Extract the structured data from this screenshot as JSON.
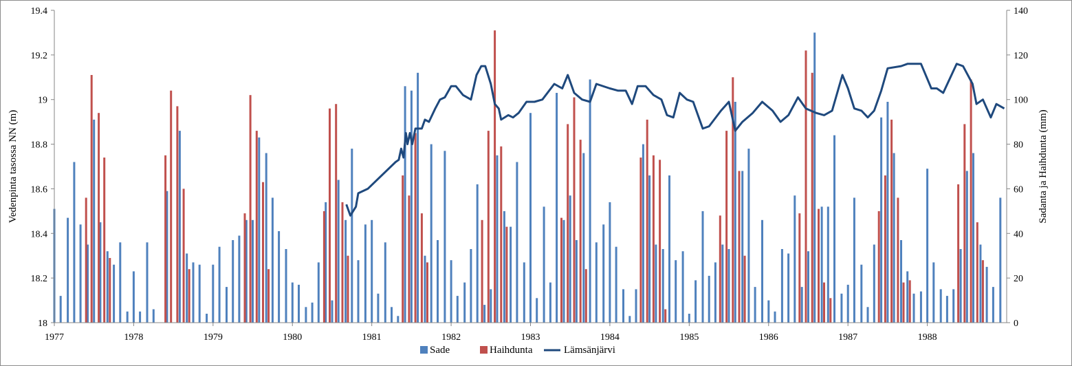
{
  "chart_data": {
    "type": "bar+line",
    "xlabel": "",
    "ylabel_left": "Vedenpinta tasossa NN (m)",
    "ylabel_right": "Sadanta ja Haihdunta (mm)",
    "xlim": [
      1977,
      1989
    ],
    "ylim_left": [
      18,
      19.4
    ],
    "ylim_right": [
      0,
      140
    ],
    "x_ticks": [
      "1977",
      "1978",
      "1979",
      "1980",
      "1981",
      "1982",
      "1983",
      "1984",
      "1985",
      "1986",
      "1987",
      "1988"
    ],
    "y_left_ticks": [
      "18",
      "18.2",
      "18.4",
      "18.6",
      "18.8",
      "19",
      "19.2",
      "19.4"
    ],
    "y_right_ticks": [
      "0",
      "20",
      "40",
      "60",
      "80",
      "100",
      "120",
      "140"
    ],
    "grid": false,
    "legend_position": "bottom",
    "colors": {
      "sade": "#4f81bd",
      "haihdunta": "#c0504d",
      "lamsanjarvi": "#1f497d"
    },
    "series": [
      {
        "name": "Sade",
        "type": "bar",
        "axis": "right",
        "values": [
          [
            1977.0,
            51
          ],
          [
            1977.08,
            12
          ],
          [
            1977.17,
            47
          ],
          [
            1977.25,
            72
          ],
          [
            1977.33,
            44
          ],
          [
            1977.42,
            35
          ],
          [
            1977.5,
            91
          ],
          [
            1977.58,
            45
          ],
          [
            1977.67,
            32
          ],
          [
            1977.75,
            26
          ],
          [
            1977.83,
            36
          ],
          [
            1977.92,
            5
          ],
          [
            1978.0,
            23
          ],
          [
            1978.08,
            5
          ],
          [
            1978.17,
            36
          ],
          [
            1978.25,
            6
          ],
          [
            1978.33,
            0
          ],
          [
            1978.42,
            59
          ],
          [
            1978.5,
            0
          ],
          [
            1978.58,
            86
          ],
          [
            1978.67,
            31
          ],
          [
            1978.75,
            27
          ],
          [
            1978.83,
            26
          ],
          [
            1978.92,
            4
          ],
          [
            1979.0,
            26
          ],
          [
            1979.08,
            34
          ],
          [
            1979.17,
            16
          ],
          [
            1979.25,
            37
          ],
          [
            1979.33,
            39
          ],
          [
            1979.42,
            46
          ],
          [
            1979.5,
            46
          ],
          [
            1979.58,
            83
          ],
          [
            1979.67,
            76
          ],
          [
            1979.75,
            56
          ],
          [
            1979.83,
            41
          ],
          [
            1979.92,
            33
          ],
          [
            1980.0,
            18
          ],
          [
            1980.08,
            17
          ],
          [
            1980.17,
            7
          ],
          [
            1980.25,
            9
          ],
          [
            1980.33,
            27
          ],
          [
            1980.42,
            54
          ],
          [
            1980.5,
            10
          ],
          [
            1980.58,
            64
          ],
          [
            1980.67,
            46
          ],
          [
            1980.75,
            78
          ],
          [
            1980.83,
            28
          ],
          [
            1980.92,
            44
          ],
          [
            1981.0,
            46
          ],
          [
            1981.08,
            13
          ],
          [
            1981.17,
            36
          ],
          [
            1981.25,
            7
          ],
          [
            1981.33,
            3
          ],
          [
            1981.42,
            106
          ],
          [
            1981.5,
            104
          ],
          [
            1981.58,
            112
          ],
          [
            1981.67,
            30
          ],
          [
            1981.75,
            80
          ],
          [
            1981.83,
            37
          ],
          [
            1981.92,
            77
          ],
          [
            1982.0,
            28
          ],
          [
            1982.08,
            12
          ],
          [
            1982.17,
            18
          ],
          [
            1982.25,
            33
          ],
          [
            1982.33,
            62
          ],
          [
            1982.42,
            8
          ],
          [
            1982.5,
            15
          ],
          [
            1982.58,
            75
          ],
          [
            1982.67,
            50
          ],
          [
            1982.75,
            43
          ],
          [
            1982.83,
            72
          ],
          [
            1982.92,
            27
          ],
          [
            1983.0,
            94
          ],
          [
            1983.08,
            11
          ],
          [
            1983.17,
            52
          ],
          [
            1983.25,
            18
          ],
          [
            1983.33,
            103
          ],
          [
            1983.42,
            46
          ],
          [
            1983.5,
            57
          ],
          [
            1983.58,
            37
          ],
          [
            1983.67,
            76
          ],
          [
            1983.75,
            109
          ],
          [
            1983.83,
            36
          ],
          [
            1983.92,
            44
          ],
          [
            1984.0,
            54
          ],
          [
            1984.08,
            34
          ],
          [
            1984.17,
            15
          ],
          [
            1984.25,
            3
          ],
          [
            1984.33,
            15
          ],
          [
            1984.42,
            80
          ],
          [
            1984.5,
            66
          ],
          [
            1984.58,
            35
          ],
          [
            1984.67,
            33
          ],
          [
            1984.75,
            66
          ],
          [
            1984.83,
            28
          ],
          [
            1984.92,
            32
          ],
          [
            1985.0,
            4
          ],
          [
            1985.08,
            19
          ],
          [
            1985.17,
            50
          ],
          [
            1985.25,
            21
          ],
          [
            1985.33,
            27
          ],
          [
            1985.42,
            35
          ],
          [
            1985.5,
            33
          ],
          [
            1985.58,
            99
          ],
          [
            1985.67,
            68
          ],
          [
            1985.75,
            78
          ],
          [
            1985.83,
            16
          ],
          [
            1985.92,
            46
          ],
          [
            1986.0,
            10
          ],
          [
            1986.08,
            5
          ],
          [
            1986.17,
            33
          ],
          [
            1986.25,
            31
          ],
          [
            1986.33,
            57
          ],
          [
            1986.42,
            16
          ],
          [
            1986.5,
            32
          ],
          [
            1986.58,
            130
          ],
          [
            1986.67,
            52
          ],
          [
            1986.75,
            52
          ],
          [
            1986.83,
            84
          ],
          [
            1986.92,
            13
          ],
          [
            1987.0,
            17
          ],
          [
            1987.08,
            56
          ],
          [
            1987.17,
            26
          ],
          [
            1987.25,
            7
          ],
          [
            1987.33,
            35
          ],
          [
            1987.42,
            92
          ],
          [
            1987.5,
            99
          ],
          [
            1987.58,
            76
          ],
          [
            1987.67,
            37
          ],
          [
            1987.75,
            23
          ],
          [
            1987.83,
            13
          ],
          [
            1987.92,
            14
          ],
          [
            1988.0,
            69
          ],
          [
            1988.08,
            27
          ],
          [
            1988.17,
            15
          ],
          [
            1988.25,
            12
          ],
          [
            1988.33,
            15
          ],
          [
            1988.42,
            33
          ],
          [
            1988.5,
            68
          ],
          [
            1988.58,
            76
          ],
          [
            1988.67,
            35
          ],
          [
            1988.75,
            25
          ],
          [
            1988.83,
            16
          ],
          [
            1988.92,
            56
          ]
        ]
      },
      {
        "name": "Haihdunta",
        "type": "bar",
        "axis": "right",
        "values": [
          [
            1977.4,
            56
          ],
          [
            1977.47,
            111
          ],
          [
            1977.56,
            94
          ],
          [
            1977.63,
            74
          ],
          [
            1977.7,
            29
          ],
          [
            1978.4,
            75
          ],
          [
            1978.47,
            104
          ],
          [
            1978.55,
            97
          ],
          [
            1978.63,
            60
          ],
          [
            1978.7,
            24
          ],
          [
            1979.4,
            49
          ],
          [
            1979.47,
            102
          ],
          [
            1979.55,
            86
          ],
          [
            1979.63,
            63
          ],
          [
            1979.7,
            24
          ],
          [
            1980.4,
            50
          ],
          [
            1980.47,
            96
          ],
          [
            1980.55,
            98
          ],
          [
            1980.63,
            54
          ],
          [
            1980.7,
            30
          ],
          [
            1981.39,
            66
          ],
          [
            1981.47,
            57
          ],
          [
            1981.55,
            85
          ],
          [
            1981.63,
            49
          ],
          [
            1981.7,
            27
          ],
          [
            1982.39,
            46
          ],
          [
            1982.47,
            86
          ],
          [
            1982.55,
            131
          ],
          [
            1982.63,
            79
          ],
          [
            1982.7,
            43
          ],
          [
            1983.39,
            47
          ],
          [
            1983.47,
            89
          ],
          [
            1983.55,
            101
          ],
          [
            1983.63,
            82
          ],
          [
            1983.7,
            24
          ],
          [
            1984.39,
            74
          ],
          [
            1984.47,
            91
          ],
          [
            1984.55,
            75
          ],
          [
            1984.63,
            73
          ],
          [
            1984.7,
            6
          ],
          [
            1985.39,
            48
          ],
          [
            1985.47,
            86
          ],
          [
            1985.55,
            110
          ],
          [
            1985.63,
            68
          ],
          [
            1985.7,
            30
          ],
          [
            1986.39,
            49
          ],
          [
            1986.47,
            122
          ],
          [
            1986.55,
            112
          ],
          [
            1986.63,
            51
          ],
          [
            1986.7,
            18
          ],
          [
            1986.78,
            11
          ],
          [
            1987.39,
            50
          ],
          [
            1987.47,
            66
          ],
          [
            1987.55,
            91
          ],
          [
            1987.63,
            56
          ],
          [
            1987.7,
            18
          ],
          [
            1987.78,
            19
          ],
          [
            1988.39,
            62
          ],
          [
            1988.47,
            89
          ],
          [
            1988.55,
            109
          ],
          [
            1988.63,
            45
          ],
          [
            1988.7,
            28
          ]
        ]
      },
      {
        "name": "Lämsänjärvi",
        "type": "line",
        "axis": "left",
        "values": [
          [
            1980.68,
            18.53
          ],
          [
            1980.73,
            18.48
          ],
          [
            1980.8,
            18.52
          ],
          [
            1980.83,
            18.58
          ],
          [
            1980.95,
            18.6
          ],
          [
            1981.3,
            18.72
          ],
          [
            1981.34,
            18.73
          ],
          [
            1981.37,
            18.78
          ],
          [
            1981.4,
            18.74
          ],
          [
            1981.43,
            18.85
          ],
          [
            1981.45,
            18.8
          ],
          [
            1981.48,
            18.85
          ],
          [
            1981.51,
            18.8
          ],
          [
            1981.55,
            18.87
          ],
          [
            1981.63,
            18.87
          ],
          [
            1981.67,
            18.91
          ],
          [
            1981.72,
            18.9
          ],
          [
            1981.8,
            18.96
          ],
          [
            1981.86,
            19.0
          ],
          [
            1981.92,
            19.01
          ],
          [
            1982.0,
            19.06
          ],
          [
            1982.06,
            19.06
          ],
          [
            1982.15,
            19.02
          ],
          [
            1982.25,
            19.0
          ],
          [
            1982.32,
            19.11
          ],
          [
            1982.38,
            19.15
          ],
          [
            1982.43,
            19.15
          ],
          [
            1982.5,
            19.07
          ],
          [
            1982.55,
            18.98
          ],
          [
            1982.6,
            18.96
          ],
          [
            1982.63,
            18.91
          ],
          [
            1982.72,
            18.93
          ],
          [
            1982.78,
            18.92
          ],
          [
            1982.85,
            18.94
          ],
          [
            1982.95,
            18.99
          ],
          [
            1983.05,
            18.99
          ],
          [
            1983.15,
            19.0
          ],
          [
            1983.3,
            19.07
          ],
          [
            1983.4,
            19.05
          ],
          [
            1983.47,
            19.11
          ],
          [
            1983.55,
            19.03
          ],
          [
            1983.65,
            19.0
          ],
          [
            1983.75,
            18.99
          ],
          [
            1983.83,
            19.07
          ],
          [
            1984.0,
            19.05
          ],
          [
            1984.1,
            19.04
          ],
          [
            1984.2,
            19.04
          ],
          [
            1984.28,
            18.98
          ],
          [
            1984.35,
            19.06
          ],
          [
            1984.45,
            19.06
          ],
          [
            1984.55,
            19.02
          ],
          [
            1984.65,
            19.0
          ],
          [
            1984.72,
            18.93
          ],
          [
            1984.8,
            18.92
          ],
          [
            1984.88,
            19.03
          ],
          [
            1984.97,
            19.0
          ],
          [
            1985.05,
            18.99
          ],
          [
            1985.17,
            18.87
          ],
          [
            1985.25,
            18.88
          ],
          [
            1985.4,
            18.95
          ],
          [
            1985.5,
            18.99
          ],
          [
            1985.58,
            18.86
          ],
          [
            1985.67,
            18.9
          ],
          [
            1985.8,
            18.94
          ],
          [
            1985.92,
            18.99
          ],
          [
            1986.05,
            18.95
          ],
          [
            1986.15,
            18.9
          ],
          [
            1986.25,
            18.93
          ],
          [
            1986.37,
            19.01
          ],
          [
            1986.47,
            18.96
          ],
          [
            1986.6,
            18.94
          ],
          [
            1986.7,
            18.93
          ],
          [
            1986.8,
            18.95
          ],
          [
            1986.93,
            19.11
          ],
          [
            1987.0,
            19.05
          ],
          [
            1987.08,
            18.96
          ],
          [
            1987.17,
            18.95
          ],
          [
            1987.25,
            18.92
          ],
          [
            1987.33,
            18.95
          ],
          [
            1987.42,
            19.04
          ],
          [
            1987.5,
            19.14
          ],
          [
            1987.67,
            19.15
          ],
          [
            1987.75,
            19.16
          ],
          [
            1987.92,
            19.16
          ],
          [
            1988.05,
            19.05
          ],
          [
            1988.12,
            19.05
          ],
          [
            1988.2,
            19.03
          ],
          [
            1988.37,
            19.16
          ],
          [
            1988.45,
            19.15
          ],
          [
            1988.57,
            19.07
          ],
          [
            1988.62,
            18.98
          ],
          [
            1988.7,
            19.0
          ],
          [
            1988.8,
            18.92
          ],
          [
            1988.87,
            18.98
          ],
          [
            1988.97,
            18.96
          ]
        ]
      }
    ]
  }
}
